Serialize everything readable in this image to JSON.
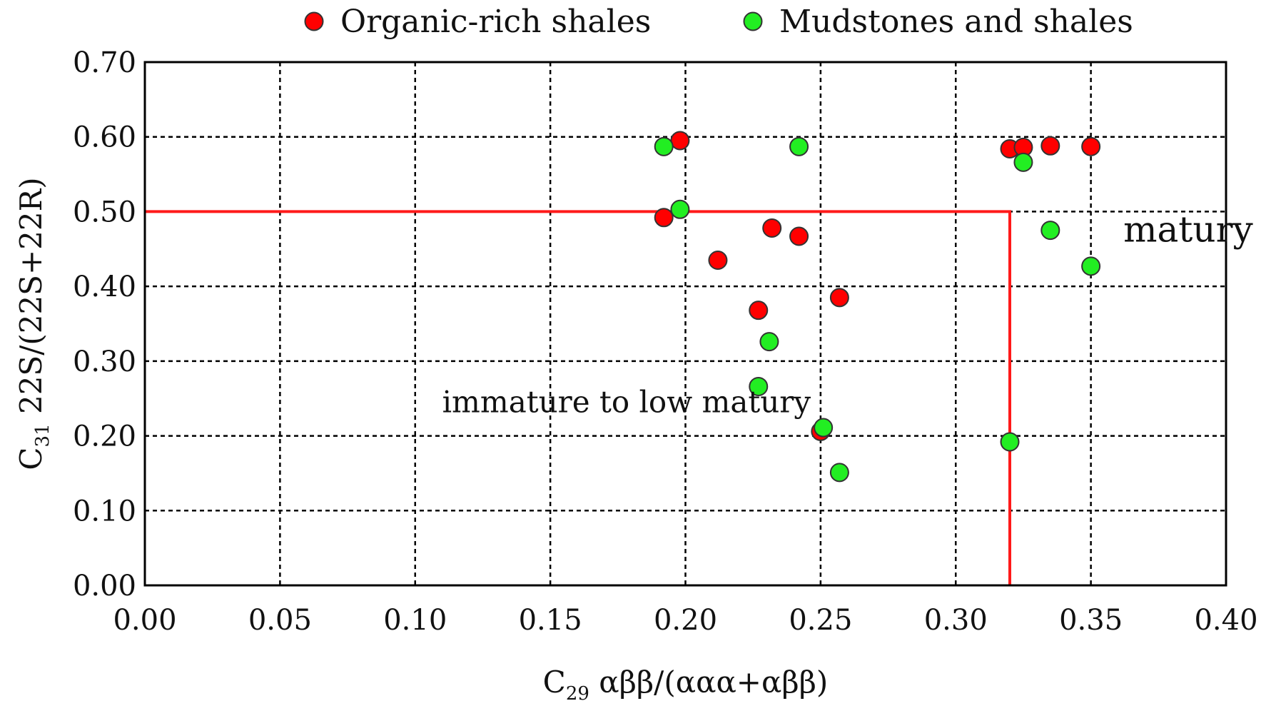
{
  "chart_data": {
    "type": "scatter",
    "xlabel": {
      "base": "C",
      "sub": "29",
      "rest": " αββ/(ααα+αββ)"
    },
    "ylabel": {
      "base": "C",
      "sub": "31",
      "rest": " 22S/(22S+22R)"
    },
    "xlim": [
      0.0,
      0.4
    ],
    "ylim": [
      0.0,
      0.7
    ],
    "xticks": [
      "0.00",
      "0.05",
      "0.10",
      "0.15",
      "0.20",
      "0.25",
      "0.30",
      "0.35",
      "0.40"
    ],
    "yticks": [
      "0.00",
      "0.10",
      "0.20",
      "0.30",
      "0.40",
      "0.50",
      "0.60",
      "0.70"
    ],
    "grid": true,
    "legend_position": "top",
    "series": [
      {
        "name": "Organic-rich shales",
        "color": "#ff0000",
        "points": [
          [
            0.198,
            0.595
          ],
          [
            0.192,
            0.492
          ],
          [
            0.212,
            0.435
          ],
          [
            0.232,
            0.478
          ],
          [
            0.242,
            0.467
          ],
          [
            0.227,
            0.368
          ],
          [
            0.257,
            0.385
          ],
          [
            0.25,
            0.206
          ],
          [
            0.32,
            0.584
          ],
          [
            0.325,
            0.586
          ],
          [
            0.335,
            0.588
          ],
          [
            0.35,
            0.587
          ]
        ]
      },
      {
        "name": "Mudstones and shales",
        "color": "#22ee22",
        "points": [
          [
            0.192,
            0.587
          ],
          [
            0.242,
            0.587
          ],
          [
            0.198,
            0.503
          ],
          [
            0.231,
            0.326
          ],
          [
            0.227,
            0.266
          ],
          [
            0.251,
            0.211
          ],
          [
            0.257,
            0.151
          ],
          [
            0.32,
            0.192
          ],
          [
            0.325,
            0.566
          ],
          [
            0.335,
            0.475
          ],
          [
            0.35,
            0.427
          ]
        ]
      }
    ],
    "boundary": {
      "x": 0.32,
      "y": 0.5,
      "color": "#ff1a1a"
    },
    "annotations": [
      {
        "text": "immature to low matury",
        "x": 0.11,
        "y": 0.245
      },
      {
        "text": "matury",
        "x": 0.362,
        "y": 0.473
      }
    ]
  }
}
